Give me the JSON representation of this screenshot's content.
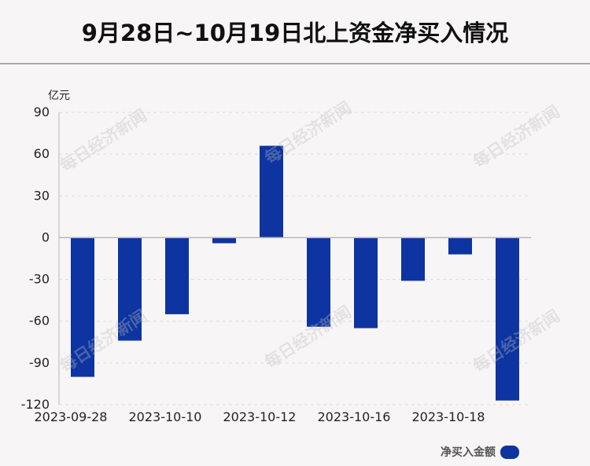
{
  "title": "9月28日~10月19日北上资金净买入情况",
  "watermark": "每日经济新闻",
  "colors": {
    "bar": "#0d34a0",
    "grid": "#e1dcdd",
    "axis": "#b9b9b9",
    "text": "#222222"
  },
  "chart_data": {
    "type": "bar",
    "ylabel": "亿元",
    "ylim": [
      -120,
      90
    ],
    "yticks": [
      90,
      60,
      30,
      0,
      -30,
      -60,
      -90,
      -120
    ],
    "grid": true,
    "xtick_labels": [
      "2023-09-28",
      "2023-10-10",
      "2023-10-12",
      "2023-10-16",
      "2023-10-18"
    ],
    "values": [
      -100,
      -74,
      -55,
      -4,
      66,
      -64,
      -65,
      -31,
      -12,
      -117
    ],
    "legend": {
      "position": "bottom-right"
    },
    "series": [
      {
        "name": "净买入金额",
        "values": [
          -100,
          -74,
          -55,
          -4,
          66,
          -64,
          -65,
          -31,
          -12,
          -117
        ]
      }
    ]
  }
}
